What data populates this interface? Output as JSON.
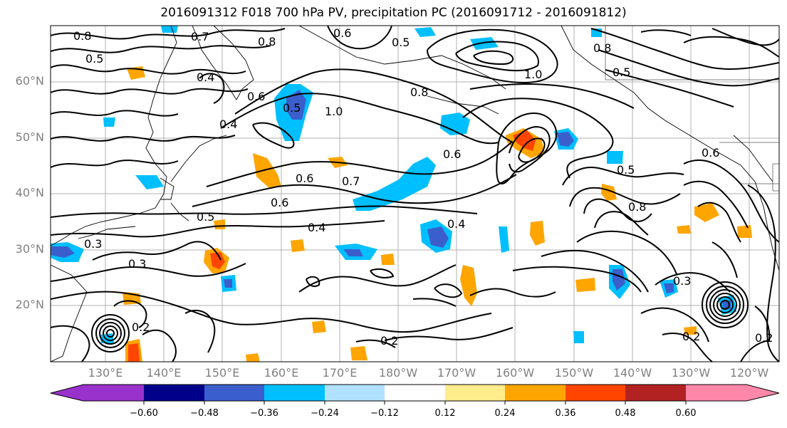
{
  "title": "2016091312 F018 700 hPa PV, precipitation PC (2016091712 - 2016091812)",
  "latitude_labels": [
    "60°N",
    "50°N",
    "40°N",
    "30°N",
    "20°N"
  ],
  "longitude_labels": [
    "130°E",
    "140°E",
    "150°E",
    "160°E",
    "170°E",
    "180°W",
    "170°W",
    "160°W",
    "150°W",
    "140°W",
    "130°W",
    "120°W"
  ],
  "colorbar": {
    "tick_labels": [
      "−0.60",
      "−0.48",
      "−0.36",
      "−0.24",
      "−0.12",
      "0.12",
      "0.24",
      "0.36",
      "0.48",
      "0.60"
    ],
    "colors": [
      "#9932cc",
      "#00008b",
      "#3a5fcd",
      "#00bfff",
      "#b0e2ff",
      "#ffffff",
      "#ffec8b",
      "#ffa500",
      "#ff4500",
      "#b22222",
      "#ff88aa"
    ]
  },
  "contour_labels": [
    "0.8",
    "0.7",
    "0.8",
    "0.6",
    "0.5",
    "0.5",
    "0.4",
    "1.0",
    "0.8",
    "0.5",
    "0.8",
    "0.6",
    "0.5",
    "0.4",
    "1.0",
    "0.6",
    "0.7",
    "0.6",
    "0.5",
    "0.6",
    "0.4",
    "0.4",
    "0.5",
    "0.8",
    "0.3",
    "0.3",
    "0.2",
    "0.2",
    "0.2",
    "0.2",
    "0.3",
    "0.6"
  ]
}
